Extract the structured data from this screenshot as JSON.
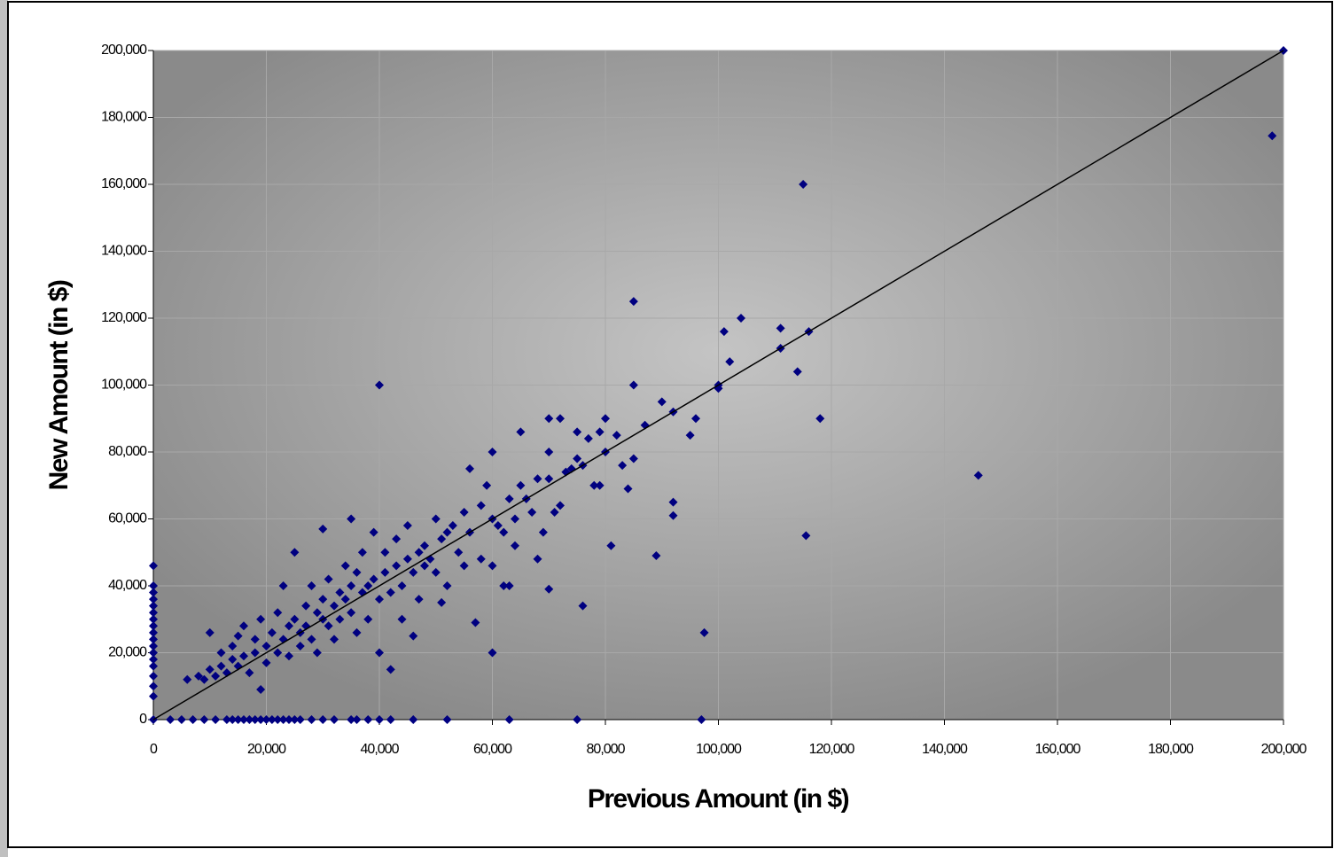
{
  "chart_data": {
    "type": "scatter",
    "x_label": "Previous Amount (in $)",
    "y_label": "New Amount (in $)",
    "color": "#000080",
    "grid": true,
    "xlim": [
      0,
      200000
    ],
    "ylim": [
      0,
      200000
    ],
    "xticks": [
      0,
      {
        "value": 20000,
        "label": "20,000"
      },
      {
        "value": 40000,
        "label": "40,000"
      },
      {
        "value": 60000,
        "label": "60,000"
      },
      {
        "value": 80000,
        "label": "80,000"
      },
      {
        "value": 100000,
        "label": "100,000"
      },
      {
        "value": 120000,
        "label": "120,000"
      },
      {
        "value": 140000,
        "label": "140,000"
      },
      {
        "value": 160000,
        "label": "160,000"
      },
      {
        "value": 180000,
        "label": "180,000"
      },
      {
        "value": 200000,
        "label": "200,000"
      }
    ],
    "yticks": [
      0,
      {
        "value": 20000,
        "label": "20,000"
      },
      {
        "value": 40000,
        "label": "40,000"
      },
      {
        "value": 60000,
        "label": "60,000"
      },
      {
        "value": 80000,
        "label": "80,000"
      },
      {
        "value": 100000,
        "label": "100,000"
      },
      {
        "value": 120000,
        "label": "120,000"
      },
      {
        "value": 140000,
        "label": "140,000"
      },
      {
        "value": 160000,
        "label": "160,000"
      },
      {
        "value": 180000,
        "label": "180,000"
      },
      {
        "value": 200000,
        "label": "200,000"
      }
    ],
    "reference_line": {
      "x": [
        0,
        200000
      ],
      "y": [
        0,
        200000
      ]
    },
    "x": [
      0,
      0,
      0,
      0,
      0,
      0,
      0,
      0,
      0,
      0,
      0,
      0,
      0,
      0,
      0,
      0,
      0,
      0,
      3000,
      5000,
      7000,
      9000,
      11000,
      13000,
      14000,
      15000,
      16000,
      17000,
      18000,
      19000,
      20000,
      21000,
      22000,
      23000,
      24000,
      25000,
      26000,
      28000,
      30000,
      32000,
      35000,
      36000,
      38000,
      40000,
      42000,
      46000,
      52000,
      63000,
      75000,
      97000,
      6000,
      8000,
      9000,
      10000,
      10000,
      11000,
      12000,
      12000,
      13000,
      14000,
      14000,
      15000,
      15000,
      16000,
      16000,
      17000,
      18000,
      18000,
      19000,
      19000,
      20000,
      20000,
      21000,
      22000,
      22000,
      23000,
      23000,
      24000,
      24000,
      25000,
      25000,
      26000,
      26000,
      27000,
      27000,
      28000,
      28000,
      29000,
      29000,
      30000,
      30000,
      30000,
      31000,
      31000,
      32000,
      32000,
      33000,
      33000,
      34000,
      34000,
      35000,
      35000,
      35000,
      36000,
      36000,
      37000,
      37000,
      38000,
      38000,
      39000,
      39000,
      40000,
      40000,
      41000,
      41000,
      42000,
      42000,
      43000,
      43000,
      44000,
      44000,
      45000,
      45000,
      46000,
      46000,
      47000,
      47000,
      48000,
      48000,
      49000,
      50000,
      50000,
      51000,
      51000,
      52000,
      52000,
      53000,
      54000,
      55000,
      55000,
      56000,
      56000,
      57000,
      58000,
      58000,
      59000,
      60000,
      60000,
      60000,
      61000,
      62000,
      62000,
      63000,
      64000,
      64000,
      65000,
      66000,
      67000,
      68000,
      68000,
      69000,
      70000,
      70000,
      71000,
      72000,
      73000,
      74000,
      75000,
      75000,
      76000,
      77000,
      78000,
      79000,
      80000,
      80000,
      82000,
      83000,
      65000,
      63000,
      40000,
      85000,
      115000,
      198000,
      200000,
      146000,
      115500,
      118000,
      97500,
      101000,
      104000,
      111000,
      111000,
      114000,
      116000,
      102000,
      100000,
      100000,
      95000,
      96000,
      92000,
      92000,
      92000,
      89000,
      81000,
      76000,
      60000,
      85000,
      87000,
      90000,
      85000,
      84000,
      79000,
      70000,
      72000,
      70000
    ],
    "values": [
      46000,
      40000,
      38000,
      36000,
      34000,
      32000,
      30000,
      28000,
      26000,
      24000,
      22000,
      20000,
      18000,
      16000,
      13000,
      10000,
      7000,
      0,
      0,
      0,
      0,
      0,
      0,
      0,
      0,
      0,
      0,
      0,
      0,
      0,
      0,
      0,
      0,
      0,
      0,
      0,
      0,
      0,
      0,
      0,
      0,
      0,
      0,
      0,
      0,
      0,
      0,
      0,
      0,
      0,
      12000,
      13000,
      12000,
      26000,
      15000,
      13000,
      20000,
      16000,
      14000,
      22000,
      18000,
      25000,
      16000,
      28000,
      19000,
      14000,
      24000,
      20000,
      9000,
      30000,
      22000,
      17000,
      26000,
      32000,
      20000,
      40000,
      24000,
      28000,
      19000,
      50000,
      30000,
      26000,
      22000,
      34000,
      28000,
      40000,
      24000,
      32000,
      20000,
      57000,
      36000,
      30000,
      28000,
      42000,
      34000,
      24000,
      38000,
      30000,
      46000,
      36000,
      60000,
      40000,
      32000,
      26000,
      44000,
      38000,
      50000,
      40000,
      30000,
      56000,
      42000,
      36000,
      20000,
      44000,
      50000,
      38000,
      15000,
      46000,
      54000,
      40000,
      30000,
      48000,
      58000,
      44000,
      25000,
      50000,
      36000,
      52000,
      46000,
      48000,
      60000,
      44000,
      54000,
      35000,
      56000,
      40000,
      58000,
      50000,
      62000,
      46000,
      75000,
      56000,
      29000,
      64000,
      48000,
      70000,
      80000,
      60000,
      46000,
      58000,
      56000,
      40000,
      66000,
      60000,
      52000,
      70000,
      66000,
      62000,
      72000,
      48000,
      56000,
      80000,
      72000,
      62000,
      64000,
      74000,
      75000,
      86000,
      78000,
      76000,
      84000,
      70000,
      86000,
      80000,
      90000,
      85000,
      76000,
      86000,
      40000,
      100000,
      125000,
      160000,
      174500,
      200000,
      73000,
      55000,
      90000,
      26000,
      116000,
      120000,
      117000,
      111000,
      104000,
      116000,
      107000,
      100000,
      99000,
      85000,
      90000,
      92000,
      65000,
      61000,
      49000,
      52000,
      34000,
      20000,
      100000,
      88000,
      95000,
      78000,
      69000,
      70000,
      90000,
      90000,
      39000
    ]
  }
}
